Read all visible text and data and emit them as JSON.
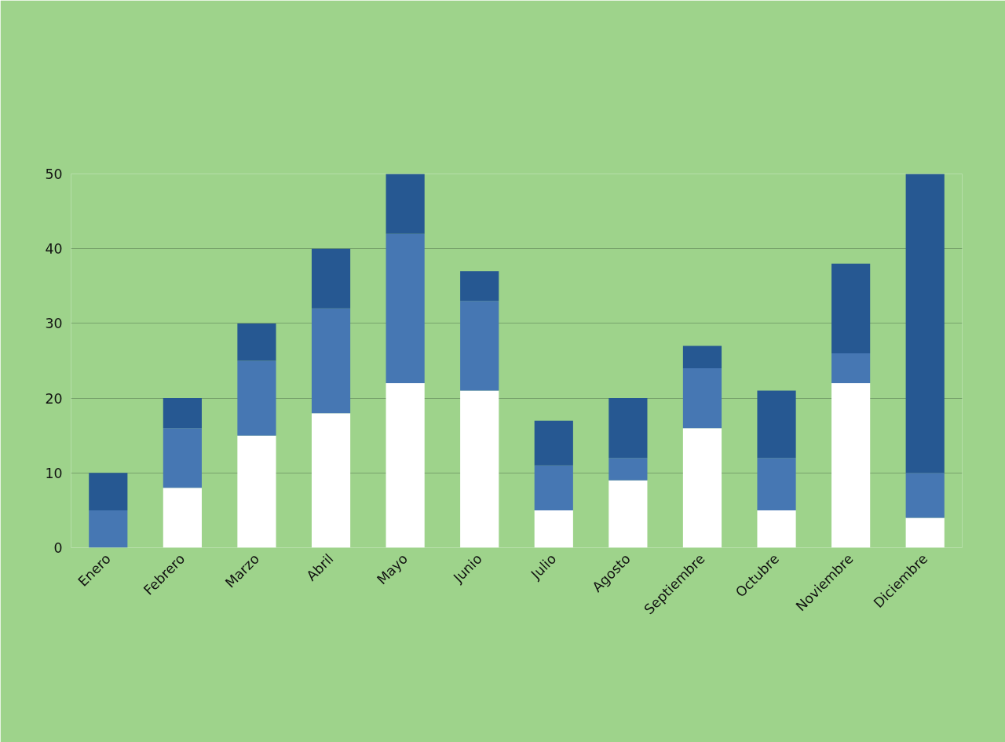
{
  "chart_data": {
    "type": "bar",
    "stacked": true,
    "categories": [
      "Enero",
      "Febrero",
      "Marzo",
      "Abril",
      "Mayo",
      "Junio",
      "Julio",
      "Agosto",
      "Septiembre",
      "Octubre",
      "Noviembre",
      "Diciembre"
    ],
    "series": [
      {
        "color": "#ffffff",
        "values": [
          0,
          8,
          15,
          18,
          22,
          21,
          5,
          9,
          16,
          5,
          22,
          4
        ]
      },
      {
        "color": "#4677b3",
        "values": [
          5,
          8,
          10,
          14,
          20,
          12,
          6,
          3,
          8,
          7,
          4,
          6
        ]
      },
      {
        "color": "#265892",
        "values": [
          5,
          4,
          5,
          8,
          8,
          4,
          6,
          8,
          3,
          9,
          12,
          40
        ]
      }
    ],
    "ylim": [
      0,
      50
    ],
    "yticks": [
      0,
      10,
      20,
      30,
      40,
      50
    ],
    "grid": "y"
  }
}
